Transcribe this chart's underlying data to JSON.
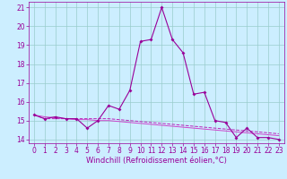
{
  "title": "",
  "xlabel": "Windchill (Refroidissement éolien,°C)",
  "ylabel": "",
  "bg_color": "#cceeff",
  "line1_color": "#990099",
  "line2_color": "#cc44cc",
  "line3_color": "#bb22bb",
  "grid_color": "#99cccc",
  "x": [
    0,
    1,
    2,
    3,
    4,
    5,
    6,
    7,
    8,
    9,
    10,
    11,
    12,
    13,
    14,
    15,
    16,
    17,
    18,
    19,
    20,
    21,
    22,
    23
  ],
  "y_main": [
    15.3,
    15.1,
    15.2,
    15.1,
    15.1,
    14.6,
    15.0,
    15.8,
    15.6,
    16.6,
    19.2,
    19.3,
    21.0,
    19.3,
    18.6,
    16.4,
    16.5,
    15.0,
    14.9,
    14.1,
    14.6,
    14.1,
    14.1,
    14.0
  ],
  "y_line2": [
    15.3,
    15.2,
    15.15,
    15.1,
    15.05,
    15.05,
    15.0,
    15.0,
    14.95,
    14.9,
    14.85,
    14.8,
    14.75,
    14.7,
    14.65,
    14.6,
    14.55,
    14.5,
    14.45,
    14.4,
    14.35,
    14.3,
    14.25,
    14.2
  ],
  "y_line3": [
    15.3,
    15.1,
    15.1,
    15.1,
    15.1,
    15.1,
    15.1,
    15.1,
    15.05,
    15.0,
    14.95,
    14.9,
    14.85,
    14.8,
    14.75,
    14.7,
    14.65,
    14.6,
    14.55,
    14.5,
    14.45,
    14.4,
    14.35,
    14.3
  ],
  "ylim": [
    13.8,
    21.3
  ],
  "xlim": [
    -0.5,
    23.5
  ],
  "yticks": [
    14,
    15,
    16,
    17,
    18,
    19,
    20,
    21
  ],
  "xticks": [
    0,
    1,
    2,
    3,
    4,
    5,
    6,
    7,
    8,
    9,
    10,
    11,
    12,
    13,
    14,
    15,
    16,
    17,
    18,
    19,
    20,
    21,
    22,
    23
  ],
  "xlabel_fontsize": 6,
  "tick_fontsize": 5.5,
  "markersize": 2.0,
  "linewidth": 0.8,
  "linewidth2": 0.7
}
